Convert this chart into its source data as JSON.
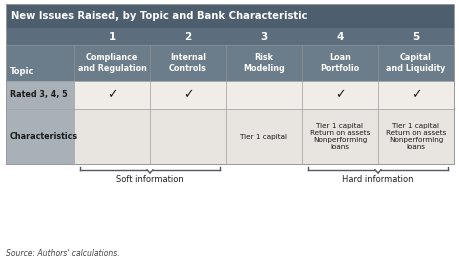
{
  "title": "New Issues Raised, by Topic and Bank Characteristic",
  "title_bg": "#4d5f6e",
  "title_color": "#ffffff",
  "header_num_bg": "#5c6e7d",
  "header_label_bg": "#6b7c8b",
  "row_label_bg": "#a8b0b8",
  "row1_bg": "#f0ede8",
  "row2_bg": "#e8e5e0",
  "border_color": "#999999",
  "text_dark": "#1a1a1a",
  "text_white": "#ffffff",
  "col_nums": [
    "1",
    "2",
    "3",
    "4",
    "5"
  ],
  "col_labels": [
    "Compliance\nand Regulation",
    "Internal\nControls",
    "Risk\nModeling",
    "Loan\nPortfolio",
    "Capital\nand Liquidity"
  ],
  "row_header": "Topic",
  "row_labels": [
    "Rated 3, 4, 5",
    "Characteristics"
  ],
  "checkmarks": [
    [
      1,
      1,
      0,
      1,
      1
    ],
    [
      0,
      0,
      0,
      0,
      0
    ]
  ],
  "cell_texts": [
    [
      "",
      "",
      "",
      "",
      ""
    ],
    [
      "",
      "",
      "Tier 1 capital",
      "Tier 1 capital\nReturn on assets\nNonperforming\nloans",
      "Tier 1 capital\nReturn on assets\nNonperforming\nloans"
    ]
  ],
  "soft_label": "Soft information",
  "hard_label": "Hard information",
  "source": "Source: Authors' calculations.",
  "fig_bg": "#ffffff"
}
